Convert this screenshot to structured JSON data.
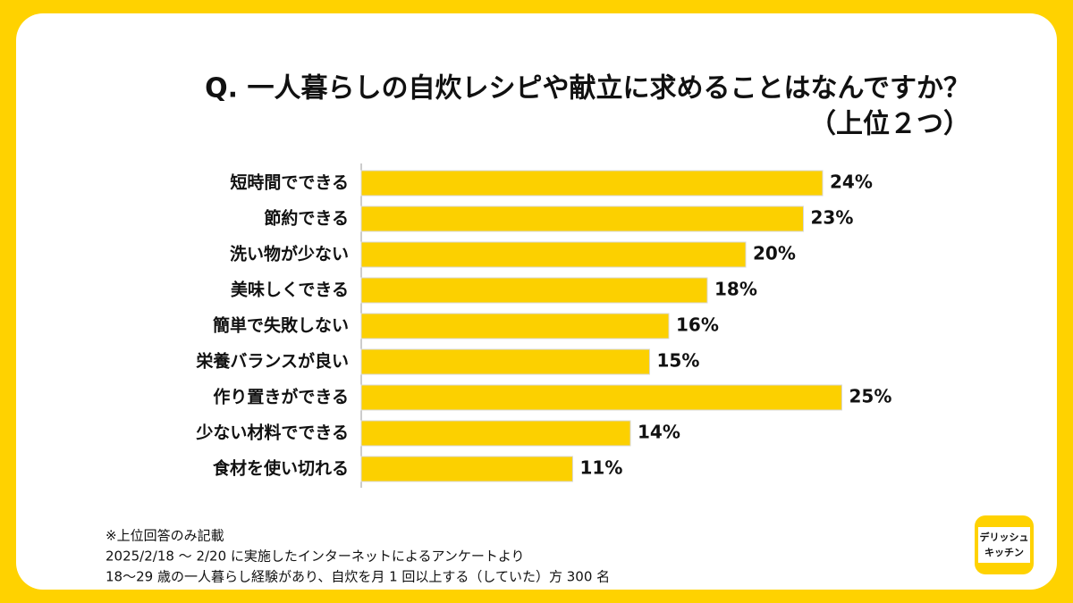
{
  "chart_data": {
    "type": "barh",
    "title": [
      "Q. 一人暮らしの自炊レシピや献立に求めることはなんですか？",
      "（上位２つ）"
    ],
    "categories": [
      "短時間でできる",
      "節約できる",
      "洗い物が少ない",
      "美味しくできる",
      "簡単で失敗しない",
      "栄養バランスが良い",
      "作り置きができる",
      "少ない材料でできる",
      "食材を使い切れる"
    ],
    "values": [
      24,
      23,
      20,
      18,
      16,
      15,
      25,
      14,
      11
    ],
    "value_labels": [
      "24%",
      "23%",
      "20%",
      "18%",
      "16%",
      "15%",
      "25%",
      "14%",
      "11%"
    ],
    "color": "#fcd000",
    "notes": [
      "※上位回答のみ記載",
      "2025/2/18 〜 2/20 に実施したインターネットによるアンケートより",
      "18〜29 歳の一人暮らし経験があり、自炊を月 1 回以上する（していた）方 300 名"
    ],
    "logo": [
      "デリッシュ",
      "キッチン"
    ]
  }
}
